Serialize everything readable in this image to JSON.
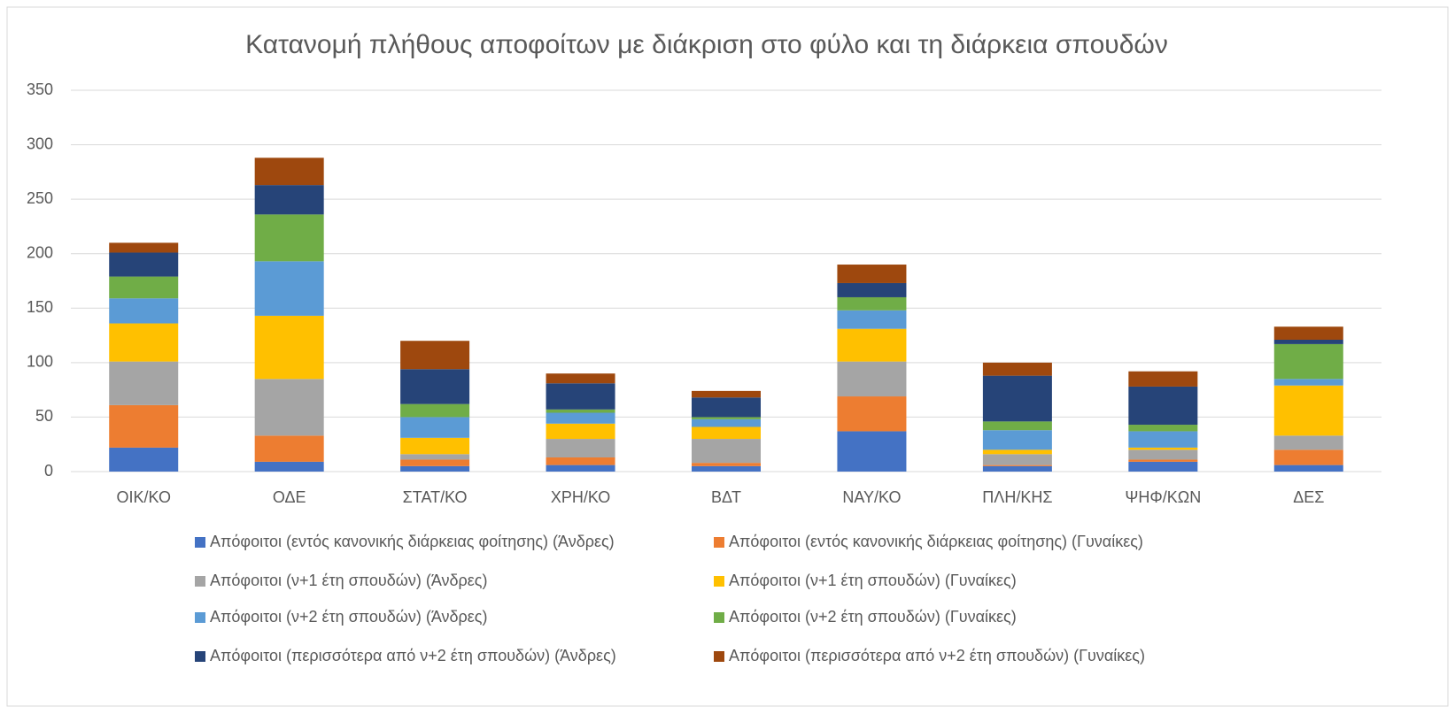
{
  "chart_data": {
    "type": "stacked_bar",
    "title": "Κατανομή πλήθους αποφοίτων με διάκριση στο φύλο και τη διάρκεια σπουδών",
    "categories": [
      "ΟΙΚ/ΚΟ",
      "ΟΔΕ",
      "ΣΤΑΤ/ΚΟ",
      "ΧΡΗ/ΚΟ",
      "ΒΔΤ",
      "ΝΑΥ/ΚΟ",
      "ΠΛΗ/ΚΗΣ",
      "ΨΗΦ/ΚΩΝ",
      "ΔΕΣ"
    ],
    "series": [
      {
        "name": "Απόφοιτοι (εντός κανονικής διάρκειας φοίτησης) (Άνδρες)",
        "color": "#4472c4",
        "values": [
          22,
          9,
          5,
          6,
          5,
          37,
          5,
          9,
          6
        ]
      },
      {
        "name": "Απόφοιτοι (εντός κανονικής διάρκειας φοίτησης) (Γυναίκες)",
        "color": "#ed7d31",
        "values": [
          39,
          24,
          6,
          7,
          3,
          32,
          1,
          2,
          14
        ]
      },
      {
        "name": "Απόφοιτοι (ν+1 έτη σπουδών) (Άνδρες)",
        "color": "#a5a5a5",
        "values": [
          40,
          52,
          5,
          17,
          22,
          32,
          10,
          9,
          13
        ]
      },
      {
        "name": "Απόφοιτοι (ν+1 έτη σπουδών) (Γυναίκες)",
        "color": "#ffc000",
        "values": [
          35,
          58,
          15,
          14,
          11,
          30,
          4,
          2,
          46
        ]
      },
      {
        "name": "Απόφοιτοι (ν+2 έτη σπουδών) (Άνδρες)",
        "color": "#5b9bd5",
        "values": [
          23,
          50,
          19,
          10,
          7,
          17,
          18,
          15,
          6
        ]
      },
      {
        "name": "Απόφοιτοι (ν+2 έτη σπουδών) (Γυναίκες)",
        "color": "#70ad47",
        "values": [
          20,
          43,
          12,
          3,
          2,
          12,
          8,
          6,
          32
        ]
      },
      {
        "name": "Απόφοιτοι (περισσότερα από ν+2 έτη σπουδών) (Άνδρες)",
        "color": "#264478",
        "values": [
          22,
          27,
          32,
          24,
          18,
          13,
          42,
          35,
          4
        ]
      },
      {
        "name": "Απόφοιτοι (περισσότερα από ν+2 έτη σπουδών) (Γυναίκες)",
        "color": "#9e480e",
        "values": [
          9,
          25,
          26,
          9,
          6,
          17,
          12,
          14,
          12
        ]
      }
    ],
    "ylim": [
      0,
      350
    ],
    "yticks": [
      0,
      50,
      100,
      150,
      200,
      250,
      300,
      350
    ],
    "grid": true,
    "legend": "bottom"
  }
}
